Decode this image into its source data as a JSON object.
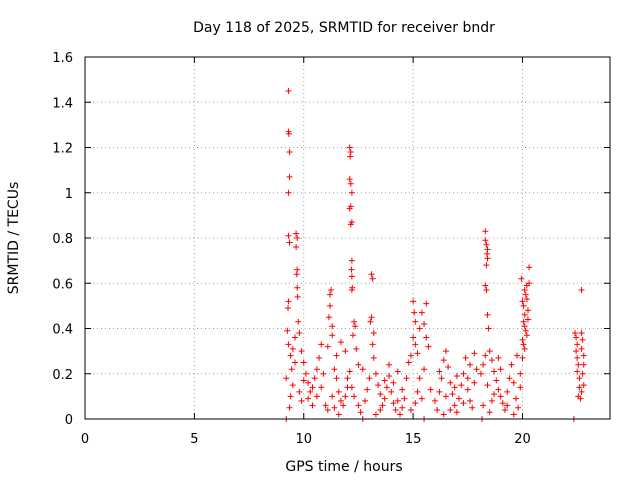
{
  "chart_data": {
    "type": "scatter",
    "title": "Day 118 of 2025, SRMTID for receiver bndr",
    "xlabel": "GPS time / hours",
    "ylabel": "SRMTID / TECUs",
    "xlim": [
      0,
      24
    ],
    "ylim": [
      0,
      1.6
    ],
    "xticks": [
      "0",
      "5",
      "10",
      "15",
      "20"
    ],
    "yticks": [
      "0",
      "0.2",
      "0.4",
      "0.6",
      "0.8",
      "1",
      "1.2",
      "1.4",
      "1.6"
    ],
    "grid": true,
    "marker": "+",
    "color": "#ff0000",
    "series": [
      {
        "points": [
          [
            9.2,
            0.18
          ],
          [
            9.25,
            0.39
          ],
          [
            9.3,
            1.45
          ],
          [
            9.3,
            1.27
          ],
          [
            9.32,
            1.26
          ],
          [
            9.35,
            1.18
          ],
          [
            9.35,
            1.07
          ],
          [
            9.3,
            1.0
          ],
          [
            9.3,
            0.81
          ],
          [
            9.35,
            0.78
          ],
          [
            9.3,
            0.52
          ],
          [
            9.28,
            0.49
          ],
          [
            9.3,
            0.33
          ],
          [
            9.4,
            0.28
          ],
          [
            9.45,
            0.22
          ],
          [
            9.5,
            0.15
          ],
          [
            9.4,
            0.1
          ],
          [
            9.35,
            0.05
          ],
          [
            9.5,
            0.31
          ],
          [
            9.6,
            0.25
          ],
          [
            9.65,
            0.82
          ],
          [
            9.7,
            0.8
          ],
          [
            9.65,
            0.76
          ],
          [
            9.7,
            0.66
          ],
          [
            9.68,
            0.64
          ],
          [
            9.7,
            0.58
          ],
          [
            9.72,
            0.54
          ],
          [
            9.75,
            0.43
          ],
          [
            9.8,
            0.38
          ],
          [
            9.6,
            0.36
          ],
          [
            9.9,
            0.3
          ],
          [
            10.0,
            0.25
          ],
          [
            10.1,
            0.2
          ],
          [
            10.2,
            0.16
          ],
          [
            10.3,
            0.12
          ],
          [
            10.4,
            0.14
          ],
          [
            10.5,
            0.18
          ],
          [
            10.6,
            0.22
          ],
          [
            10.7,
            0.27
          ],
          [
            10.8,
            0.33
          ],
          [
            9.8,
            0.12
          ],
          [
            9.9,
            0.08
          ],
          [
            10.0,
            0.17
          ],
          [
            10.2,
            0.09
          ],
          [
            10.4,
            0.06
          ],
          [
            10.6,
            0.1
          ],
          [
            10.8,
            0.14
          ],
          [
            10.9,
            0.2
          ],
          [
            11.0,
            0.06
          ],
          [
            11.1,
            0.04
          ],
          [
            11.2,
            0.55
          ],
          [
            11.25,
            0.57
          ],
          [
            11.2,
            0.5
          ],
          [
            11.15,
            0.45
          ],
          [
            11.3,
            0.41
          ],
          [
            11.3,
            0.37
          ],
          [
            11.1,
            0.32
          ],
          [
            11.4,
            0.22
          ],
          [
            11.5,
            0.18
          ],
          [
            11.6,
            0.12
          ],
          [
            11.7,
            0.08
          ],
          [
            11.8,
            0.06
          ],
          [
            11.9,
            0.1
          ],
          [
            12.0,
            0.14
          ],
          [
            11.5,
            0.28
          ],
          [
            11.7,
            0.34
          ],
          [
            11.9,
            0.3
          ],
          [
            11.6,
            0.02
          ],
          [
            11.4,
            0.05
          ],
          [
            11.3,
            0.1
          ],
          [
            12.1,
            1.2
          ],
          [
            12.15,
            1.18
          ],
          [
            12.12,
            1.16
          ],
          [
            12.1,
            1.06
          ],
          [
            12.15,
            1.04
          ],
          [
            12.2,
            1.0
          ],
          [
            12.15,
            0.94
          ],
          [
            12.1,
            0.93
          ],
          [
            12.2,
            0.87
          ],
          [
            12.15,
            0.86
          ],
          [
            12.2,
            0.7
          ],
          [
            12.18,
            0.66
          ],
          [
            12.2,
            0.63
          ],
          [
            12.22,
            0.58
          ],
          [
            12.2,
            0.57
          ],
          [
            12.3,
            0.43
          ],
          [
            12.35,
            0.41
          ],
          [
            12.25,
            0.37
          ],
          [
            12.4,
            0.31
          ],
          [
            12.5,
            0.24
          ],
          [
            12.1,
            0.21
          ],
          [
            12.0,
            0.18
          ],
          [
            12.2,
            0.14
          ],
          [
            12.3,
            0.1
          ],
          [
            12.5,
            0.06
          ],
          [
            12.6,
            0.03
          ],
          [
            12.8,
            0.08
          ],
          [
            12.9,
            0.13
          ],
          [
            13.0,
            0.18
          ],
          [
            12.7,
            0.22
          ],
          [
            13.1,
            0.64
          ],
          [
            13.15,
            0.62
          ],
          [
            13.1,
            0.45
          ],
          [
            13.05,
            0.43
          ],
          [
            13.2,
            0.38
          ],
          [
            13.15,
            0.33
          ],
          [
            13.2,
            0.27
          ],
          [
            13.3,
            0.2
          ],
          [
            13.4,
            0.15
          ],
          [
            13.5,
            0.11
          ],
          [
            13.6,
            0.06
          ],
          [
            13.7,
            0.09
          ],
          [
            13.8,
            0.14
          ],
          [
            13.9,
            0.19
          ],
          [
            14.0,
            0.12
          ],
          [
            14.1,
            0.07
          ],
          [
            14.2,
            0.04
          ],
          [
            14.3,
            0.08
          ],
          [
            14.4,
            0.02
          ],
          [
            14.5,
            0.05
          ],
          [
            13.3,
            0.02
          ],
          [
            13.5,
            0.04
          ],
          [
            13.7,
            0.17
          ],
          [
            13.9,
            0.24
          ],
          [
            14.1,
            0.16
          ],
          [
            14.3,
            0.21
          ],
          [
            14.5,
            0.13
          ],
          [
            14.6,
            0.09
          ],
          [
            14.7,
            0.18
          ],
          [
            14.8,
            0.25
          ],
          [
            15.0,
            0.52
          ],
          [
            15.05,
            0.47
          ],
          [
            15.1,
            0.43
          ],
          [
            15.0,
            0.36
          ],
          [
            15.1,
            0.33
          ],
          [
            15.2,
            0.29
          ],
          [
            14.9,
            0.28
          ],
          [
            15.3,
            0.4
          ],
          [
            15.4,
            0.47
          ],
          [
            15.5,
            0.42
          ],
          [
            15.6,
            0.51
          ],
          [
            15.6,
            0.36
          ],
          [
            15.7,
            0.32
          ],
          [
            15.5,
            0.22
          ],
          [
            15.3,
            0.18
          ],
          [
            15.2,
            0.12
          ],
          [
            15.1,
            0.07
          ],
          [
            14.9,
            0.04
          ],
          [
            15.4,
            0.09
          ],
          [
            15.8,
            0.13
          ],
          [
            16.0,
            0.08
          ],
          [
            16.1,
            0.04
          ],
          [
            16.2,
            0.12
          ],
          [
            16.3,
            0.18
          ],
          [
            16.4,
            0.26
          ],
          [
            16.5,
            0.3
          ],
          [
            16.6,
            0.23
          ],
          [
            16.7,
            0.16
          ],
          [
            16.8,
            0.11
          ],
          [
            16.9,
            0.06
          ],
          [
            17.0,
            0.03
          ],
          [
            17.1,
            0.09
          ],
          [
            17.2,
            0.15
          ],
          [
            17.3,
            0.2
          ],
          [
            17.4,
            0.27
          ],
          [
            17.5,
            0.13
          ],
          [
            17.6,
            0.08
          ],
          [
            17.7,
            0.05
          ],
          [
            17.8,
            0.16
          ],
          [
            17.9,
            0.22
          ],
          [
            16.4,
            0.02
          ],
          [
            16.7,
            0.04
          ],
          [
            17.0,
            0.19
          ],
          [
            17.3,
            0.07
          ],
          [
            17.6,
            0.24
          ],
          [
            17.8,
            0.29
          ],
          [
            16.2,
            0.21
          ],
          [
            16.5,
            0.1
          ],
          [
            16.9,
            0.14
          ],
          [
            17.5,
            0.18
          ],
          [
            18.3,
            0.83
          ],
          [
            18.3,
            0.79
          ],
          [
            18.35,
            0.77
          ],
          [
            18.4,
            0.75
          ],
          [
            18.38,
            0.73
          ],
          [
            18.4,
            0.71
          ],
          [
            18.35,
            0.68
          ],
          [
            18.3,
            0.59
          ],
          [
            18.35,
            0.57
          ],
          [
            18.4,
            0.46
          ],
          [
            18.45,
            0.4
          ],
          [
            18.3,
            0.28
          ],
          [
            18.2,
            0.24
          ],
          [
            18.1,
            0.2
          ],
          [
            18.5,
            0.3
          ],
          [
            18.6,
            0.26
          ],
          [
            18.7,
            0.21
          ],
          [
            18.8,
            0.17
          ],
          [
            18.9,
            0.13
          ],
          [
            19.0,
            0.1
          ],
          [
            19.1,
            0.07
          ],
          [
            19.2,
            0.04
          ],
          [
            19.3,
            0.12
          ],
          [
            19.4,
            0.18
          ],
          [
            19.5,
            0.24
          ],
          [
            19.6,
            0.16
          ],
          [
            19.7,
            0.09
          ],
          [
            19.8,
            0.05
          ],
          [
            18.2,
            0.06
          ],
          [
            18.5,
            0.03
          ],
          [
            18.7,
            0.11
          ],
          [
            19.0,
            0.22
          ],
          [
            19.3,
            0.06
          ],
          [
            19.6,
            0.02
          ],
          [
            18.4,
            0.15
          ],
          [
            18.9,
            0.27
          ],
          [
            19.9,
            0.14
          ],
          [
            19.9,
            0.2
          ],
          [
            19.75,
            0.28
          ],
          [
            18.6,
            0.08
          ],
          [
            20.0,
            0.52
          ],
          [
            20.05,
            0.5
          ],
          [
            20.1,
            0.46
          ],
          [
            20.05,
            0.43
          ],
          [
            20.1,
            0.41
          ],
          [
            20.15,
            0.39
          ],
          [
            20.0,
            0.35
          ],
          [
            20.05,
            0.33
          ],
          [
            20.1,
            0.31
          ],
          [
            20.0,
            0.27
          ],
          [
            20.1,
            0.57
          ],
          [
            20.15,
            0.55
          ],
          [
            20.2,
            0.59
          ],
          [
            20.2,
            0.53
          ],
          [
            20.25,
            0.48
          ],
          [
            20.3,
            0.67
          ],
          [
            20.25,
            0.44
          ],
          [
            20.2,
            0.37
          ],
          [
            19.95,
            0.62
          ],
          [
            20.3,
            0.6
          ],
          [
            22.4,
            0.38
          ],
          [
            22.45,
            0.36
          ],
          [
            22.5,
            0.33
          ],
          [
            22.45,
            0.3
          ],
          [
            22.5,
            0.27
          ],
          [
            22.55,
            0.24
          ],
          [
            22.5,
            0.21
          ],
          [
            22.6,
            0.18
          ],
          [
            22.6,
            0.14
          ],
          [
            22.55,
            0.1
          ],
          [
            22.7,
            0.38
          ],
          [
            22.75,
            0.35
          ],
          [
            22.7,
            0.31
          ],
          [
            22.8,
            0.28
          ],
          [
            22.8,
            0.24
          ],
          [
            22.7,
            0.57
          ],
          [
            22.75,
            0.2
          ],
          [
            22.8,
            0.15
          ],
          [
            22.65,
            0.09
          ],
          [
            22.7,
            0.12
          ]
        ]
      },
      {
        "points": [
          [
            9.2,
            0
          ],
          [
            12.7,
            0
          ],
          [
            15.5,
            0
          ],
          [
            18.15,
            0
          ],
          [
            22.35,
            0
          ]
        ]
      }
    ]
  }
}
